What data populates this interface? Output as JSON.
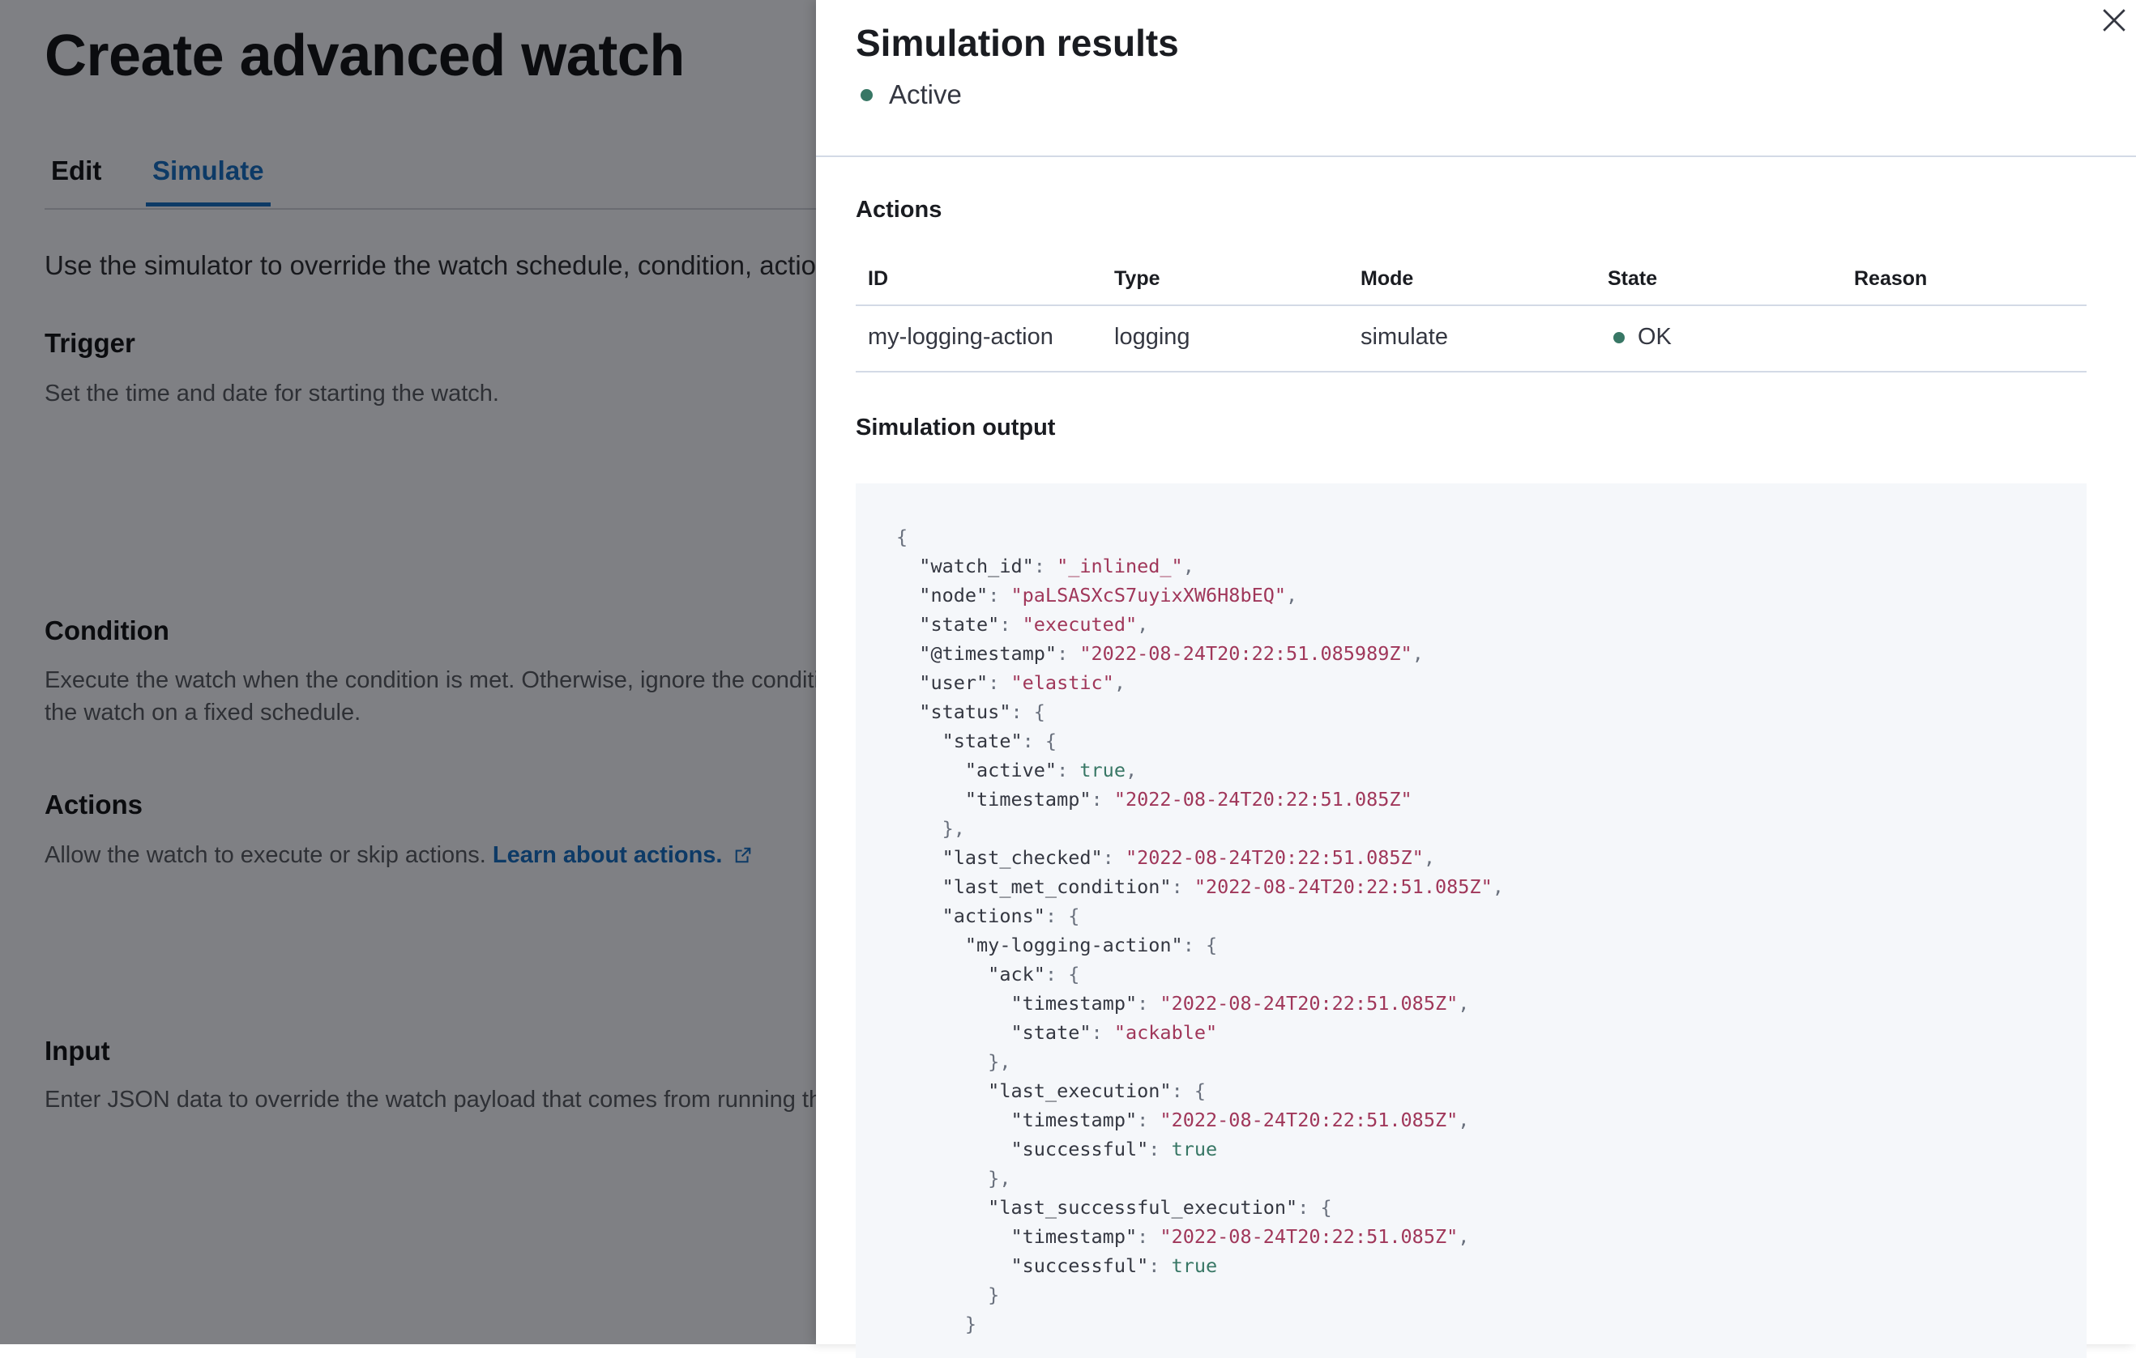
{
  "page": {
    "title": "Create advanced watch",
    "tabs": [
      {
        "label": "Edit",
        "active": false
      },
      {
        "label": "Simulate",
        "active": true
      }
    ],
    "intro": "Use the simulator to override the watch schedule, condition, actions, and input results.",
    "sections": {
      "trigger": {
        "title": "Trigger",
        "description": "Set the time and date for starting the watch."
      },
      "condition": {
        "title": "Condition",
        "description_line1": "Execute the watch when the condition is met. Otherwise, ignore the condition and run",
        "description_line2": "the watch on a fixed schedule."
      },
      "actions": {
        "title": "Actions",
        "description": "Allow the watch to execute or skip actions.",
        "link": "Learn about actions."
      },
      "input": {
        "title": "Input",
        "description": "Enter JSON data to override the watch payload that comes from running the input."
      }
    }
  },
  "flyout": {
    "title": "Simulation results",
    "status": {
      "label": "Active",
      "color": "#387765"
    },
    "actions_heading": "Actions",
    "table": {
      "columns": [
        "ID",
        "Type",
        "Mode",
        "State",
        "Reason"
      ],
      "rows": [
        {
          "id": "my-logging-action",
          "type": "logging",
          "mode": "simulate",
          "state": "OK",
          "reason": ""
        }
      ]
    },
    "output_heading": "Simulation output",
    "code_lines": [
      [
        [
          "{",
          "punct"
        ]
      ],
      [
        [
          "  \"watch_id\"",
          "key"
        ],
        [
          ": ",
          "punct"
        ],
        [
          "\"_inlined_\"",
          "str"
        ],
        [
          ",",
          "punct"
        ]
      ],
      [
        [
          "  \"node\"",
          "key"
        ],
        [
          ": ",
          "punct"
        ],
        [
          "\"paLSASXcS7uyixXW6H8bEQ\"",
          "str"
        ],
        [
          ",",
          "punct"
        ]
      ],
      [
        [
          "  \"state\"",
          "key"
        ],
        [
          ": ",
          "punct"
        ],
        [
          "\"executed\"",
          "str"
        ],
        [
          ",",
          "punct"
        ]
      ],
      [
        [
          "  \"@timestamp\"",
          "key"
        ],
        [
          ": ",
          "punct"
        ],
        [
          "\"2022-08-24T20:22:51.085989Z\"",
          "str"
        ],
        [
          ",",
          "punct"
        ]
      ],
      [
        [
          "  \"user\"",
          "key"
        ],
        [
          ": ",
          "punct"
        ],
        [
          "\"elastic\"",
          "str"
        ],
        [
          ",",
          "punct"
        ]
      ],
      [
        [
          "  \"status\"",
          "key"
        ],
        [
          ": {",
          "punct"
        ]
      ],
      [
        [
          "    \"state\"",
          "key"
        ],
        [
          ": {",
          "punct"
        ]
      ],
      [
        [
          "      \"active\"",
          "key"
        ],
        [
          ": ",
          "punct"
        ],
        [
          "true",
          "bool"
        ],
        [
          ",",
          "punct"
        ]
      ],
      [
        [
          "      \"timestamp\"",
          "key"
        ],
        [
          ": ",
          "punct"
        ],
        [
          "\"2022-08-24T20:22:51.085Z\"",
          "str"
        ]
      ],
      [
        [
          "    },",
          "punct"
        ]
      ],
      [
        [
          "    \"last_checked\"",
          "key"
        ],
        [
          ": ",
          "punct"
        ],
        [
          "\"2022-08-24T20:22:51.085Z\"",
          "str"
        ],
        [
          ",",
          "punct"
        ]
      ],
      [
        [
          "    \"last_met_condition\"",
          "key"
        ],
        [
          ": ",
          "punct"
        ],
        [
          "\"2022-08-24T20:22:51.085Z\"",
          "str"
        ],
        [
          ",",
          "punct"
        ]
      ],
      [
        [
          "    \"actions\"",
          "key"
        ],
        [
          ": {",
          "punct"
        ]
      ],
      [
        [
          "      \"my-logging-action\"",
          "key"
        ],
        [
          ": {",
          "punct"
        ]
      ],
      [
        [
          "        \"ack\"",
          "key"
        ],
        [
          ": {",
          "punct"
        ]
      ],
      [
        [
          "          \"timestamp\"",
          "key"
        ],
        [
          ": ",
          "punct"
        ],
        [
          "\"2022-08-24T20:22:51.085Z\"",
          "str"
        ],
        [
          ",",
          "punct"
        ]
      ],
      [
        [
          "          \"state\"",
          "key"
        ],
        [
          ": ",
          "punct"
        ],
        [
          "\"ackable\"",
          "str"
        ]
      ],
      [
        [
          "        },",
          "punct"
        ]
      ],
      [
        [
          "        \"last_execution\"",
          "key"
        ],
        [
          ": {",
          "punct"
        ]
      ],
      [
        [
          "          \"timestamp\"",
          "key"
        ],
        [
          ": ",
          "punct"
        ],
        [
          "\"2022-08-24T20:22:51.085Z\"",
          "str"
        ],
        [
          ",",
          "punct"
        ]
      ],
      [
        [
          "          \"successful\"",
          "key"
        ],
        [
          ": ",
          "punct"
        ],
        [
          "true",
          "bool"
        ]
      ],
      [
        [
          "        },",
          "punct"
        ]
      ],
      [
        [
          "        \"last_successful_execution\"",
          "key"
        ],
        [
          ": {",
          "punct"
        ]
      ],
      [
        [
          "          \"timestamp\"",
          "key"
        ],
        [
          ": ",
          "punct"
        ],
        [
          "\"2022-08-24T20:22:51.085Z\"",
          "str"
        ],
        [
          ",",
          "punct"
        ]
      ],
      [
        [
          "          \"successful\"",
          "key"
        ],
        [
          ": ",
          "punct"
        ],
        [
          "true",
          "bool"
        ]
      ],
      [
        [
          "        }",
          "punct"
        ]
      ],
      [
        [
          "      }",
          "punct"
        ]
      ]
    ]
  },
  "colors": {
    "accent": "#006bb8",
    "success": "#387765",
    "string": "#a0375a"
  }
}
